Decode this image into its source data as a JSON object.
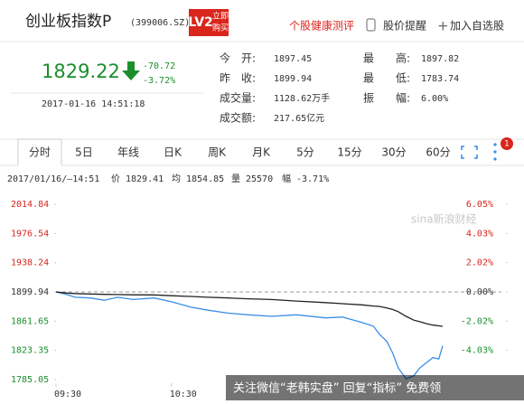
{
  "header": {
    "title": "创业板指数P",
    "code": "(399006.SZ)",
    "badge": "LV2",
    "badge_action": [
      "立即",
      "购买"
    ],
    "links": [
      "个股健康测评",
      "股价提醒",
      "加入自选股"
    ]
  },
  "quote": {
    "price": "1829.22",
    "change": "-70.72",
    "change_pct": "-3.72%",
    "time": "2017-01-16 14:51:18",
    "stats": [
      {
        "label": "今　开:",
        "value": "1897.45"
      },
      {
        "label": "最　　高:",
        "value": "1897.82"
      },
      {
        "label": "昨　收:",
        "value": "1899.94"
      },
      {
        "label": "最　　低:",
        "value": "1783.74"
      },
      {
        "label": "成交量:",
        "value": "1128.62万手"
      },
      {
        "label": "振　　幅:",
        "value": "6.00%"
      },
      {
        "label": "成交额:",
        "value": "217.65亿元"
      }
    ]
  },
  "tabs": [
    "分时",
    "5日",
    "年线",
    "日K",
    "周K",
    "月K",
    "5分",
    "15分",
    "30分",
    "60分"
  ],
  "notification_count": "1",
  "info": {
    "time": "2017/01/16/—14:51",
    "price_label": "价",
    "price": "1829.41",
    "avg_label": "均",
    "avg": "1854.85",
    "vol_label": "量",
    "vol": "25570",
    "pct_label": "幅",
    "pct": "-3.71%"
  },
  "chart_data": {
    "type": "line",
    "x": [
      0,
      5,
      10,
      18,
      25,
      32,
      40,
      51,
      60,
      70,
      79,
      90,
      100,
      112,
      125,
      140,
      149,
      159,
      165,
      168,
      172,
      175,
      178,
      182,
      186,
      189,
      193,
      196,
      199,
      201
    ],
    "series": [
      {
        "name": "价",
        "color": "#3a8ee6",
        "values": [
          1899.94,
          1897,
          1893,
          1892,
          1889,
          1893,
          1890,
          1892,
          1887,
          1880,
          1876,
          1872,
          1870,
          1868,
          1870,
          1866,
          1867,
          1860,
          1855,
          1845,
          1835,
          1820,
          1800,
          1786,
          1790,
          1800,
          1808,
          1814,
          1812,
          1829.41
        ]
      },
      {
        "name": "均",
        "color": "#222222",
        "values": [
          1899.94,
          1898.5,
          1897.8,
          1897.2,
          1896.8,
          1896.5,
          1896.2,
          1896,
          1895,
          1894,
          1893,
          1892,
          1891,
          1890,
          1888,
          1886,
          1884.5,
          1883,
          1881.5,
          1881,
          1879,
          1877,
          1874,
          1868,
          1863,
          1861,
          1858,
          1856.5,
          1855.5,
          1854.85
        ]
      }
    ],
    "xlim": [
      0,
      240
    ],
    "xticks": [
      {
        "value": 0,
        "label": "09:30"
      },
      {
        "value": 60,
        "label": "10:30"
      }
    ],
    "ylim": [
      1785.05,
      2014.84
    ],
    "yticks": [
      2014.84,
      1976.54,
      1938.24,
      1899.94,
      1861.65,
      1823.35,
      1785.05
    ],
    "y2lim": [
      -6.05,
      6.05
    ],
    "y2ticks": [
      {
        "value": 6.05,
        "label": "6.05%"
      },
      {
        "value": 4.03,
        "label": "4.03%"
      },
      {
        "value": 2.02,
        "label": "2.02%"
      },
      {
        "value": 0,
        "label": "0.00%"
      },
      {
        "value": -2.02,
        "label": "-2.02%"
      },
      {
        "value": -4.03,
        "label": "-4.03%"
      }
    ],
    "reference_line": 1899.94,
    "up_color": "#d9251c",
    "down_color": "#1a8f2c"
  },
  "watermark": "关注微信“老韩实盘” 回复“指标” 免费领",
  "sina": "sina新浪财经"
}
